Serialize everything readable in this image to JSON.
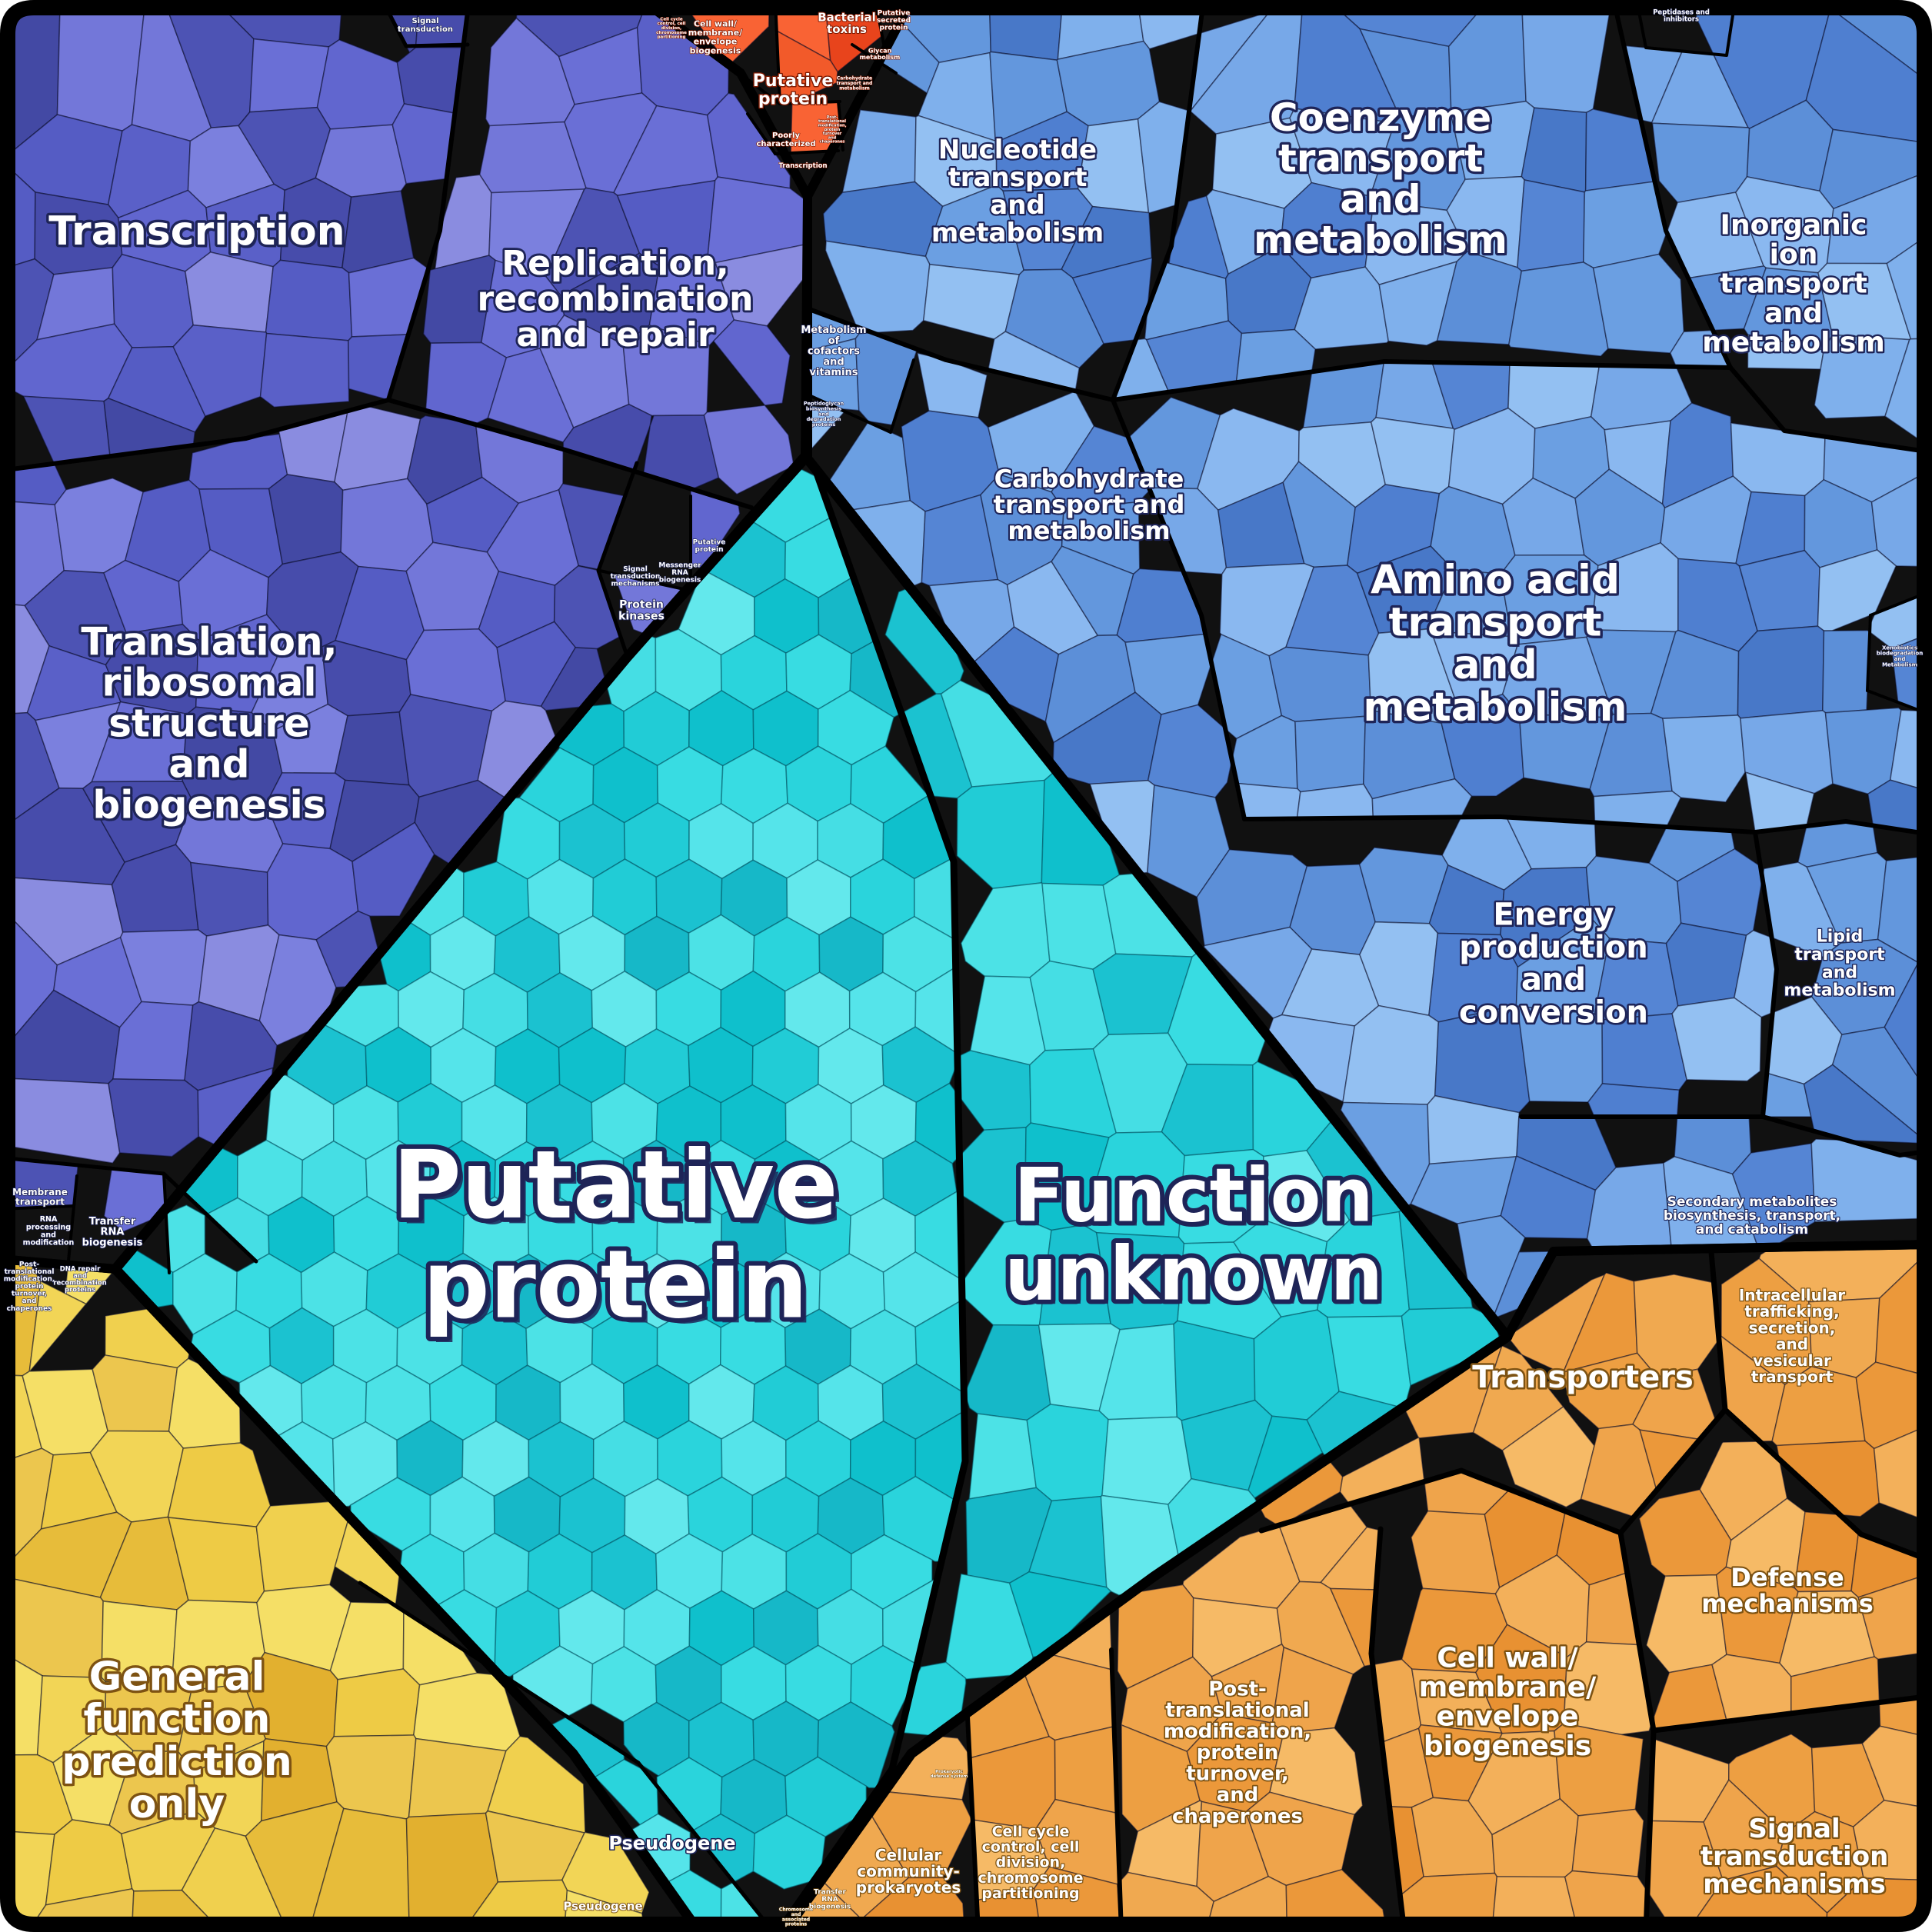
{
  "chart_data": {
    "type": "voronoi-treemap",
    "title": "Functional category Voronoi treemap",
    "legend_position": "none",
    "grid": "off",
    "groups": [
      {
        "name": "Information storage and processing",
        "color": "#5a60c8",
        "categories": [
          "Transcription",
          "Replication, recombination and repair",
          "Translation, ribosomal structure and biogenesis",
          "Signal transduction",
          "Membrane transport",
          "RNA processing and modification",
          "Transfer RNA biogenesis",
          "Post-translational modification, protein turnover, and chaperones",
          "DNA repair and recombination proteins",
          "Putative protein",
          "Signal transduction mechanisms",
          "Messenger RNA biogenesis",
          "Protein kinases"
        ]
      },
      {
        "name": "Poorly characterized (red)",
        "color": "#e8441c",
        "categories": [
          "Bacterial toxins",
          "Putative secreted protein",
          "Cell wall/membrane/envelope biogenesis",
          "Cell cycle control, cell division, chromosome partitioning",
          "Glycan metabolism",
          "Putative protein",
          "Carbohydrate transport and metabolism",
          "Post-translational modification, protein turnover and chaperones",
          "Poorly characterized",
          "Transcription"
        ]
      },
      {
        "name": "Metabolism",
        "color": "#6b9fe2",
        "categories": [
          "Nucleotide transport and metabolism",
          "Coenzyme transport and metabolism",
          "Inorganic ion transport and metabolism",
          "Carbohydrate transport and metabolism",
          "Amino acid transport and metabolism",
          "Energy production and conversion",
          "Lipid transport and metabolism",
          "Secondary metabolites biosynthesis, transport, and catabolism",
          "Metabolism of cofactors and vitamins",
          "Peptidoglycan biosynthesis and degradation proteins",
          "Xenobiotics biodegradation and Metabolism",
          "Peptidases and inhibitors"
        ]
      },
      {
        "name": "Function unknown / Putative",
        "color": "#2ad4dc",
        "categories": [
          "Putative protein",
          "Function unknown",
          "Pseudogene"
        ]
      },
      {
        "name": "General prediction",
        "color": "#eecb45",
        "categories": [
          "General function prediction only",
          "Pseudogene"
        ]
      },
      {
        "name": "Cellular processes and signaling",
        "color": "#efa44b",
        "categories": [
          "Transporters",
          "Intracellular trafficking, secretion, and vesicular transport",
          "Defense mechanisms",
          "Cell wall/membrane/envelope biogenesis",
          "Post-translational modification, protein turnover, and chaperones",
          "Signal transduction mechanisms",
          "Cellular community- prokaryotes",
          "Cell cycle control, cell division, chromosome partitioning",
          "Transfer RNA biogenesis",
          "Chromosome and associated proteins",
          "Prokaryotic defense system"
        ]
      }
    ]
  },
  "palette": {
    "border": "#000000",
    "background": "#111111",
    "purple": [
      "#4d53b4",
      "#5a60c8",
      "#6a6fd6",
      "#474cab",
      "#7b80de",
      "#555cc4",
      "#8a8ce0",
      "#6166cf",
      "#4349a4",
      "#7377d9"
    ],
    "blue": [
      "#6b9fe2",
      "#5c8fd8",
      "#7fb0ec",
      "#4f7fd0",
      "#8ab8f0",
      "#6397dd",
      "#5585d4",
      "#93c0f2",
      "#4878c8",
      "#77a8e8"
    ],
    "red": [
      "#e8441c",
      "#f25a2a",
      "#dd3a10",
      "#ef5022",
      "#f96334",
      "#e03d13",
      "#eb4a1e"
    ],
    "yellow": [
      "#eecb45",
      "#f2d556",
      "#e7bc3a",
      "#f5df66",
      "#ecc64e",
      "#e2b02f",
      "#f0d04e"
    ],
    "orange": [
      "#efa44b",
      "#eb983a",
      "#f3b05a",
      "#e89132",
      "#f6ba66",
      "#ed9f42",
      "#f0a950"
    ],
    "cyan": [
      "#2ad4dc",
      "#4ce2e6",
      "#1bc2d0",
      "#63e8ec",
      "#38dce2",
      "#16b8c8",
      "#55e4ea",
      "#21ccd6",
      "#45dee4",
      "#0fc0cc"
    ]
  },
  "labels": [
    {
      "id": "transcription-title",
      "text": "Transcription"
    },
    {
      "id": "replication-title",
      "text": "Replication,\nrecombination\nand repair"
    },
    {
      "id": "translation-title",
      "text": "Translation,\nribosomal\nstructure\nand\nbiogenesis"
    },
    {
      "id": "signal-transduction-top",
      "text": "Signal\ntransduction"
    },
    {
      "id": "membrane-transport",
      "text": "Membrane\ntransport"
    },
    {
      "id": "rna-processing-modification",
      "text": "RNA\nprocessing\nand\nmodification"
    },
    {
      "id": "transfer-rna-biogenesis",
      "text": "Transfer\nRNA\nbiogenesis"
    },
    {
      "id": "post-translational-left",
      "text": "Post-\ntranslational\nmodification,\nprotein\nturnover,\nand\nchaperones"
    },
    {
      "id": "dna-repair",
      "text": "DNA repair\nand\nrecombination\nproteins"
    },
    {
      "id": "putative-protein-upper",
      "text": "Putative\nprotein"
    },
    {
      "id": "signal-transduction-mid",
      "text": "Signal\ntransduction\nmechanisms"
    },
    {
      "id": "messenger-rna-biogenesis",
      "text": "Messenger\nRNA\nbiogenesis"
    },
    {
      "id": "protein-kinases",
      "text": "Protein\nkinases"
    },
    {
      "id": "bacterial-toxins",
      "text": "Bacterial\ntoxins"
    },
    {
      "id": "putative-secreted-protein",
      "text": "Putative\nsecreted\nprotein"
    },
    {
      "id": "cell-wall-red",
      "text": "Cell wall/\nmembrane/\nenvelope\nbiogenesis"
    },
    {
      "id": "cell-cycle-red",
      "text": "Cell cycle\ncontrol, cell\ndivision,\nchromosome\npartitioning"
    },
    {
      "id": "glycan-metabolism",
      "text": "Glycan\nmetabolism"
    },
    {
      "id": "putative-protein-red",
      "text": "Putative\nprotein"
    },
    {
      "id": "carbohydrate-red",
      "text": "Carbohydrate\ntransport and\nmetabolism"
    },
    {
      "id": "post-translational-red",
      "text": "Post-\ntranslational\nmodification,\nprotein\nturnover\nand\nchaperones"
    },
    {
      "id": "poorly-characterized",
      "text": "Poorly\ncharacterized"
    },
    {
      "id": "transcription-red",
      "text": "Transcription"
    },
    {
      "id": "nucleotide-title",
      "text": "Nucleotide\ntransport\nand\nmetabolism"
    },
    {
      "id": "coenzyme-title",
      "text": "Coenzyme\ntransport\nand\nmetabolism"
    },
    {
      "id": "inorganic-title",
      "text": "Inorganic\nion\ntransport\nand\nmetabolism"
    },
    {
      "id": "carbohydrate-title",
      "text": "Carbohydrate\ntransport and\nmetabolism"
    },
    {
      "id": "amino-title",
      "text": "Amino acid\ntransport\nand\nmetabolism"
    },
    {
      "id": "energy-title",
      "text": "Energy\nproduction\nand\nconversion"
    },
    {
      "id": "lipid-title",
      "text": "Lipid\ntransport\nand\nmetabolism"
    },
    {
      "id": "secondary-title",
      "text": "Secondary metabolites\nbiosynthesis, transport,\nand catabolism"
    },
    {
      "id": "metabolism-cofactors",
      "text": "Metabolism\nof\ncofactors\nand\nvitamins"
    },
    {
      "id": "peptidoglycan",
      "text": "Peptidoglycan\nbiosynthesis\nand\ndegradation\nproteins"
    },
    {
      "id": "xenobiotics",
      "text": "Xenobiotics\nbiodegradation\nand\nMetabolism"
    },
    {
      "id": "peptidases",
      "text": "Peptidases and\ninhibitors"
    },
    {
      "id": "putative-protein-title",
      "text": "Putative\nprotein"
    },
    {
      "id": "function-unknown-title",
      "text": "Function\nunknown"
    },
    {
      "id": "pseudogene-main",
      "text": "Pseudogene"
    },
    {
      "id": "pseudogene-small",
      "text": "Pseudogene"
    },
    {
      "id": "general-function-title",
      "text": "General\nfunction\nprediction\nonly"
    },
    {
      "id": "transporters-title",
      "text": "Transporters"
    },
    {
      "id": "intracellular-title",
      "text": "Intracellular\ntrafficking,\nsecretion,\nand\nvesicular\ntransport"
    },
    {
      "id": "defense-title",
      "text": "Defense\nmechanisms"
    },
    {
      "id": "cell-wall-orange",
      "text": "Cell wall/\nmembrane/\nenvelope\nbiogenesis"
    },
    {
      "id": "post-translational-orange",
      "text": "Post-\ntranslational\nmodification,\nprotein\nturnover,\nand\nchaperones"
    },
    {
      "id": "signal-transduction-orange",
      "text": "Signal\ntransduction\nmechanisms"
    },
    {
      "id": "cellular-community",
      "text": "Cellular\ncommunity-\nprokaryotes"
    },
    {
      "id": "cell-cycle-orange",
      "text": "Cell cycle\ncontrol, cell\ndivision,\nchromosome\npartitioning"
    },
    {
      "id": "transfer-rna-orange",
      "text": "Transfer\nRNA\nbiogenesis"
    },
    {
      "id": "chromosome-proteins",
      "text": "Chromosome\nand\nassociated\nproteins"
    },
    {
      "id": "prokaryotic-defense",
      "text": "Prokaryotic\ndefense system"
    }
  ]
}
